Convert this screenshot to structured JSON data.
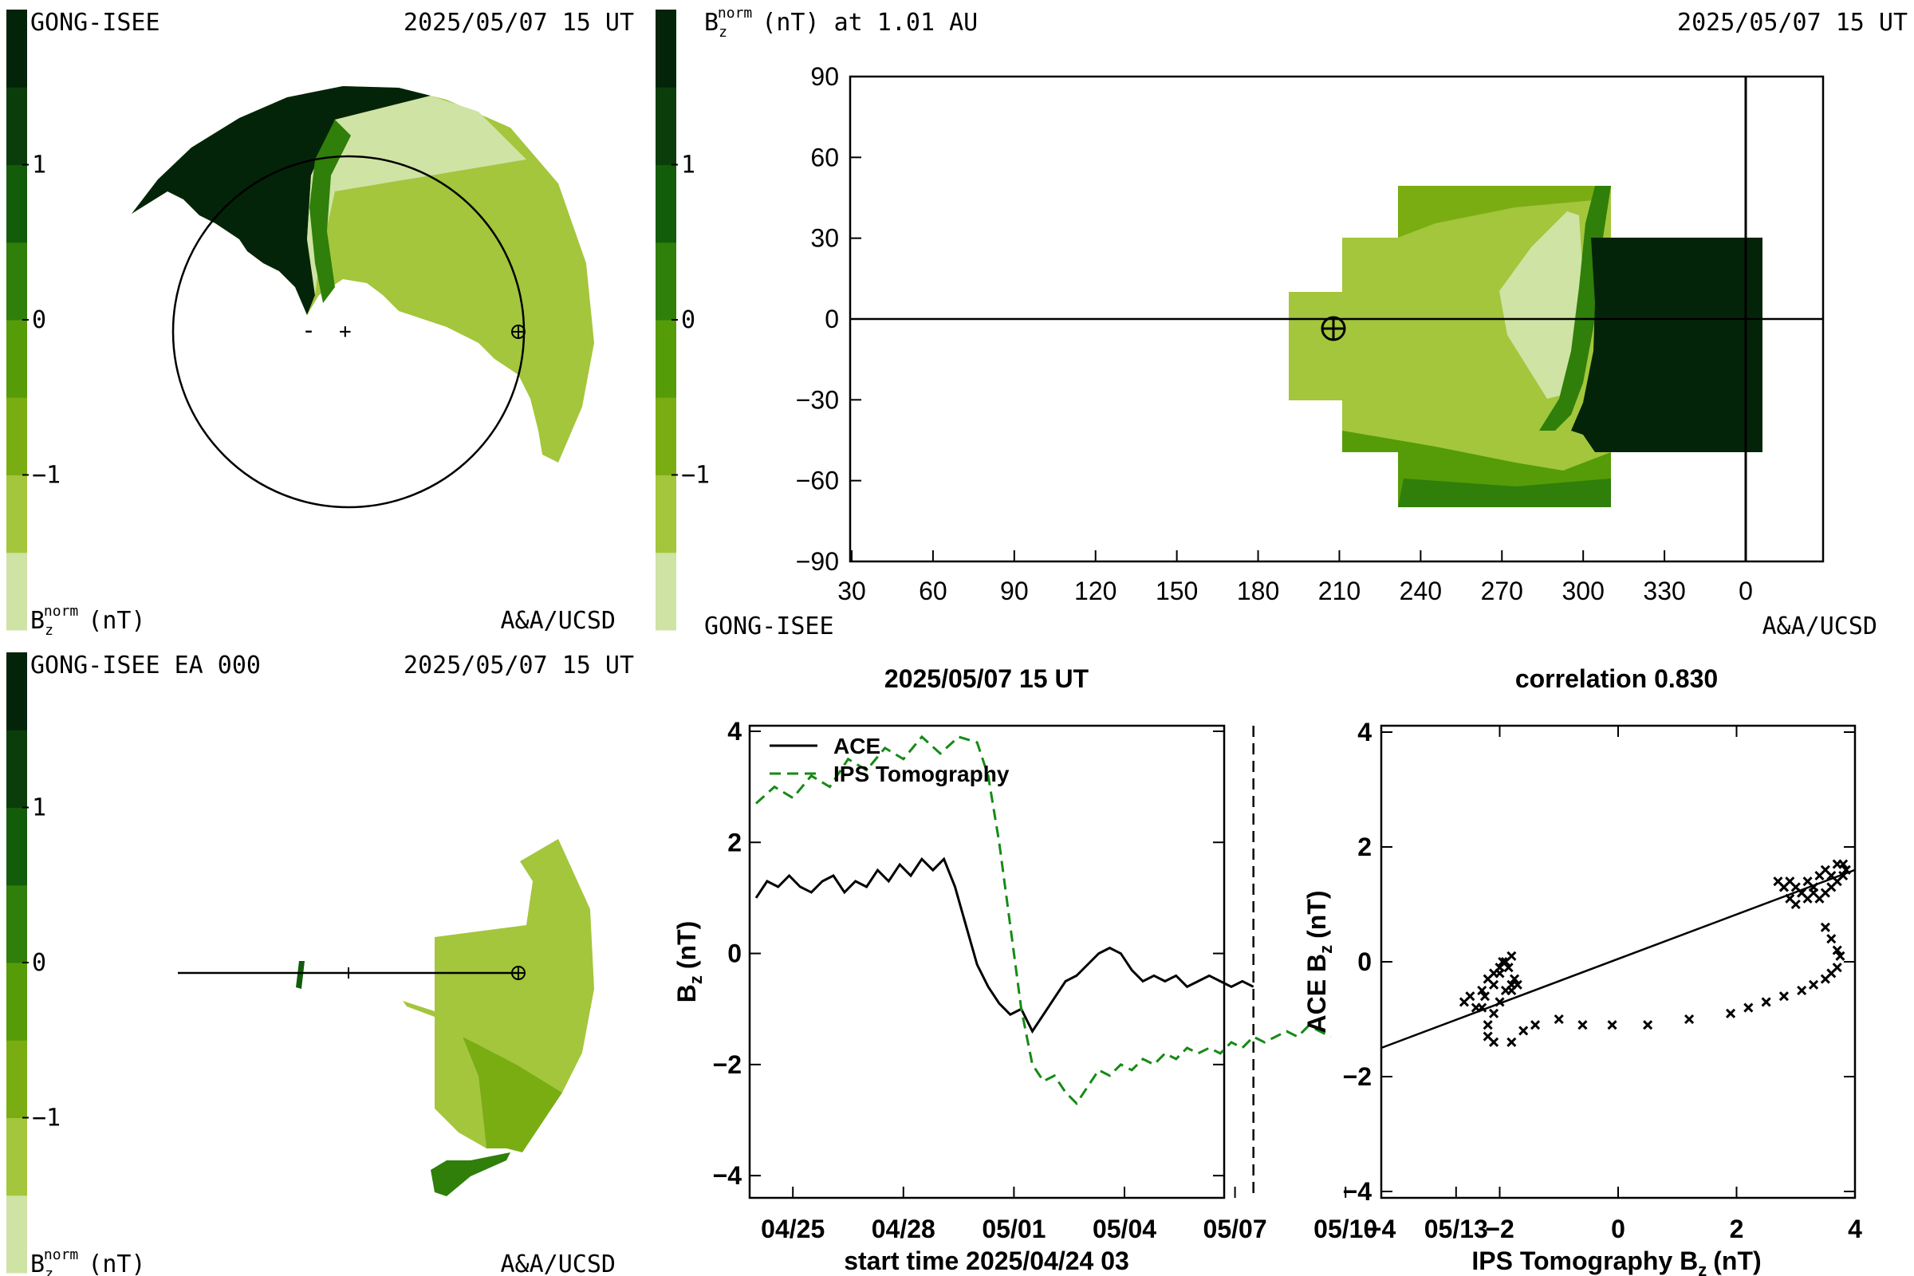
{
  "colors": {
    "scale": [
      "#cfe3a5",
      "#a3c63c",
      "#7aad12",
      "#559c08",
      "#2f7f0a",
      "#135c0a",
      "#0b3d0a",
      "#04240a"
    ],
    "earth_line": "#000000",
    "ips": "#168a16"
  },
  "panels": {
    "top_left": {
      "header_left": "GONG-ISEE",
      "header_right": "2025/05/07 15 UT",
      "footer_right": "A&A/UCSD",
      "colorbar_ticks": [
        "1",
        "0",
        "−1"
      ],
      "colorbar_label": "B",
      "colorbar_label_sub": "z",
      "colorbar_label_sup": "norm",
      "colorbar_label_unit": "(nT)",
      "marker_minus": "-",
      "marker_plus": "+"
    },
    "top_right": {
      "title": "B",
      "title_sub": "z",
      "title_sup": "norm",
      "title_rest": "(nT) at 1.01 AU",
      "header_right": "2025/05/07 15 UT",
      "footer_left": "GONG-ISEE",
      "footer_right": "A&A/UCSD",
      "colorbar_ticks": [
        "1",
        "0",
        "−1"
      ]
    },
    "bottom_left": {
      "header_left": "GONG-ISEE EA 000",
      "header_right": "2025/05/07 15 UT",
      "footer_right": "A&A/UCSD",
      "colorbar_ticks": [
        "1",
        "0",
        "−1"
      ],
      "colorbar_label": "B",
      "colorbar_label_sub": "z",
      "colorbar_label_sup": "norm",
      "colorbar_label_unit": "(nT)"
    }
  },
  "chart_data": [
    {
      "type": "heatmap",
      "name": "synoptic map",
      "x_ticks": [
        "30",
        "60",
        "90",
        "120",
        "150",
        "180",
        "210",
        "240",
        "270",
        "300",
        "330",
        "0"
      ],
      "y_ticks": [
        "90",
        "60",
        "30",
        "0",
        "−30",
        "−60",
        "−90"
      ],
      "ylim": [
        -90,
        90
      ]
    },
    {
      "type": "line",
      "title": "2025/05/07 15 UT",
      "xlabel": "start time 2025/04/24 03",
      "ylabel": "B",
      "ylabel_sub": "z",
      "ylabel_unit": "(nT)",
      "x_ticks": [
        "04/25",
        "04/28",
        "05/01",
        "05/04",
        "05/07",
        "05/10",
        "05/13"
      ],
      "y_ticks": [
        "4",
        "2",
        "0",
        "−2",
        "−4"
      ],
      "ylim": [
        -4.4,
        4.1
      ],
      "now_day": 13.5,
      "series": [
        {
          "name": "ACE",
          "style": "solid",
          "x": [
            0,
            0.3,
            0.6,
            0.9,
            1.2,
            1.5,
            1.8,
            2.1,
            2.4,
            2.7,
            3.0,
            3.3,
            3.6,
            3.9,
            4.2,
            4.5,
            4.8,
            5.1,
            5.4,
            5.7,
            6.0,
            6.3,
            6.6,
            6.9,
            7.2,
            7.5,
            7.8,
            8.1,
            8.4,
            8.7,
            9.0,
            9.3,
            9.6,
            9.9,
            10.2,
            10.5,
            10.8,
            11.1,
            11.4,
            11.7,
            12.0,
            12.3,
            12.6,
            12.9,
            13.2,
            13.5
          ],
          "y": [
            1.0,
            1.3,
            1.2,
            1.4,
            1.2,
            1.1,
            1.3,
            1.4,
            1.1,
            1.3,
            1.2,
            1.5,
            1.3,
            1.6,
            1.4,
            1.7,
            1.5,
            1.7,
            1.2,
            0.5,
            -0.2,
            -0.6,
            -0.9,
            -1.1,
            -1.0,
            -1.4,
            -1.1,
            -0.8,
            -0.5,
            -0.4,
            -0.2,
            0.0,
            0.1,
            0.0,
            -0.3,
            -0.5,
            -0.4,
            -0.5,
            -0.4,
            -0.6,
            -0.5,
            -0.4,
            -0.5,
            -0.6,
            -0.5,
            -0.6
          ]
        },
        {
          "name": "IPS Tomography",
          "style": "dashed",
          "x": [
            0,
            0.5,
            1.0,
            1.5,
            2.0,
            2.5,
            3.0,
            3.5,
            4.0,
            4.5,
            5.0,
            5.5,
            6.0,
            6.3,
            6.6,
            6.9,
            7.2,
            7.5,
            7.8,
            8.1,
            8.4,
            8.7,
            9.0,
            9.3,
            9.6,
            9.9,
            10.2,
            10.5,
            10.8,
            11.1,
            11.4,
            11.7,
            12.0,
            12.3,
            12.6,
            12.9,
            13.2,
            13.5,
            13.8,
            14.1,
            14.4,
            14.7,
            15.0,
            15.3,
            15.6
          ],
          "y": [
            2.7,
            3.0,
            2.8,
            3.2,
            3.0,
            3.5,
            3.3,
            3.7,
            3.5,
            3.9,
            3.6,
            3.9,
            3.8,
            3.2,
            2.0,
            0.5,
            -1.0,
            -2.0,
            -2.3,
            -2.2,
            -2.5,
            -2.7,
            -2.4,
            -2.1,
            -2.2,
            -2.0,
            -2.1,
            -1.9,
            -2.0,
            -1.8,
            -1.9,
            -1.7,
            -1.8,
            -1.7,
            -1.8,
            -1.6,
            -1.7,
            -1.5,
            -1.6,
            -1.5,
            -1.4,
            -1.5,
            -1.3,
            -1.4,
            -1.5
          ]
        }
      ]
    },
    {
      "type": "scatter",
      "title": "correlation 0.830",
      "xlabel": "IPS Tomography B",
      "xlabel_sub": "z",
      "xlabel_unit": "(nT)",
      "ylabel": "ACE B",
      "ylabel_sub": "z",
      "ylabel_unit": "(nT)",
      "x_ticks": [
        "−4",
        "−2",
        "0",
        "2",
        "4"
      ],
      "y_ticks": [
        "4",
        "2",
        "0",
        "−2",
        "−4"
      ],
      "xlim": [
        -4,
        4
      ],
      "ylim": [
        -4,
        4
      ],
      "fit": {
        "x": [
          -4,
          4
        ],
        "y": [
          -1.5,
          1.6
        ]
      },
      "x": [
        -2.6,
        -2.5,
        -2.4,
        -2.3,
        -2.2,
        -2.1,
        -2.0,
        -1.9,
        -1.8,
        -1.75,
        -1.8,
        -1.9,
        -2.0,
        -2.1,
        -2.2,
        -2.3,
        -2.25,
        -2.1,
        -2.0,
        -1.95,
        -1.85,
        -1.8,
        -1.7,
        -2.2,
        -2.1,
        -1.8,
        -1.6,
        -1.4,
        -1.0,
        -0.6,
        -0.1,
        0.5,
        1.2,
        1.9,
        2.2,
        2.5,
        2.8,
        3.1,
        3.3,
        3.5,
        3.6,
        3.7,
        2.7,
        2.8,
        2.9,
        3.0,
        3.1,
        3.2,
        3.3,
        3.4,
        3.5,
        3.6,
        3.7,
        3.8,
        3.85,
        3.8,
        3.7,
        3.6,
        3.5,
        3.4,
        3.3,
        3.2,
        3.1,
        3.0,
        2.9,
        2.8,
        3.5,
        3.6,
        3.7,
        3.75
      ],
      "y": [
        -0.7,
        -0.6,
        -0.8,
        -0.5,
        -0.3,
        -0.2,
        -0.1,
        0.0,
        0.1,
        -0.3,
        -0.4,
        -0.5,
        -0.7,
        -0.9,
        -1.1,
        -0.8,
        -0.6,
        -0.4,
        -0.2,
        0.0,
        -0.1,
        -0.5,
        -0.4,
        -1.3,
        -1.4,
        -1.4,
        -1.2,
        -1.1,
        -1.0,
        -1.1,
        -1.1,
        -1.1,
        -1.0,
        -0.9,
        -0.8,
        -0.7,
        -0.6,
        -0.5,
        -0.4,
        -0.3,
        -0.2,
        -0.1,
        1.4,
        1.3,
        1.4,
        1.3,
        1.2,
        1.4,
        1.3,
        1.5,
        1.6,
        1.5,
        1.7,
        1.7,
        1.6,
        1.5,
        1.4,
        1.3,
        1.2,
        1.1,
        1.2,
        1.1,
        1.2,
        1.0,
        1.1,
        1.3,
        0.6,
        0.4,
        0.2,
        0.1
      ]
    }
  ]
}
